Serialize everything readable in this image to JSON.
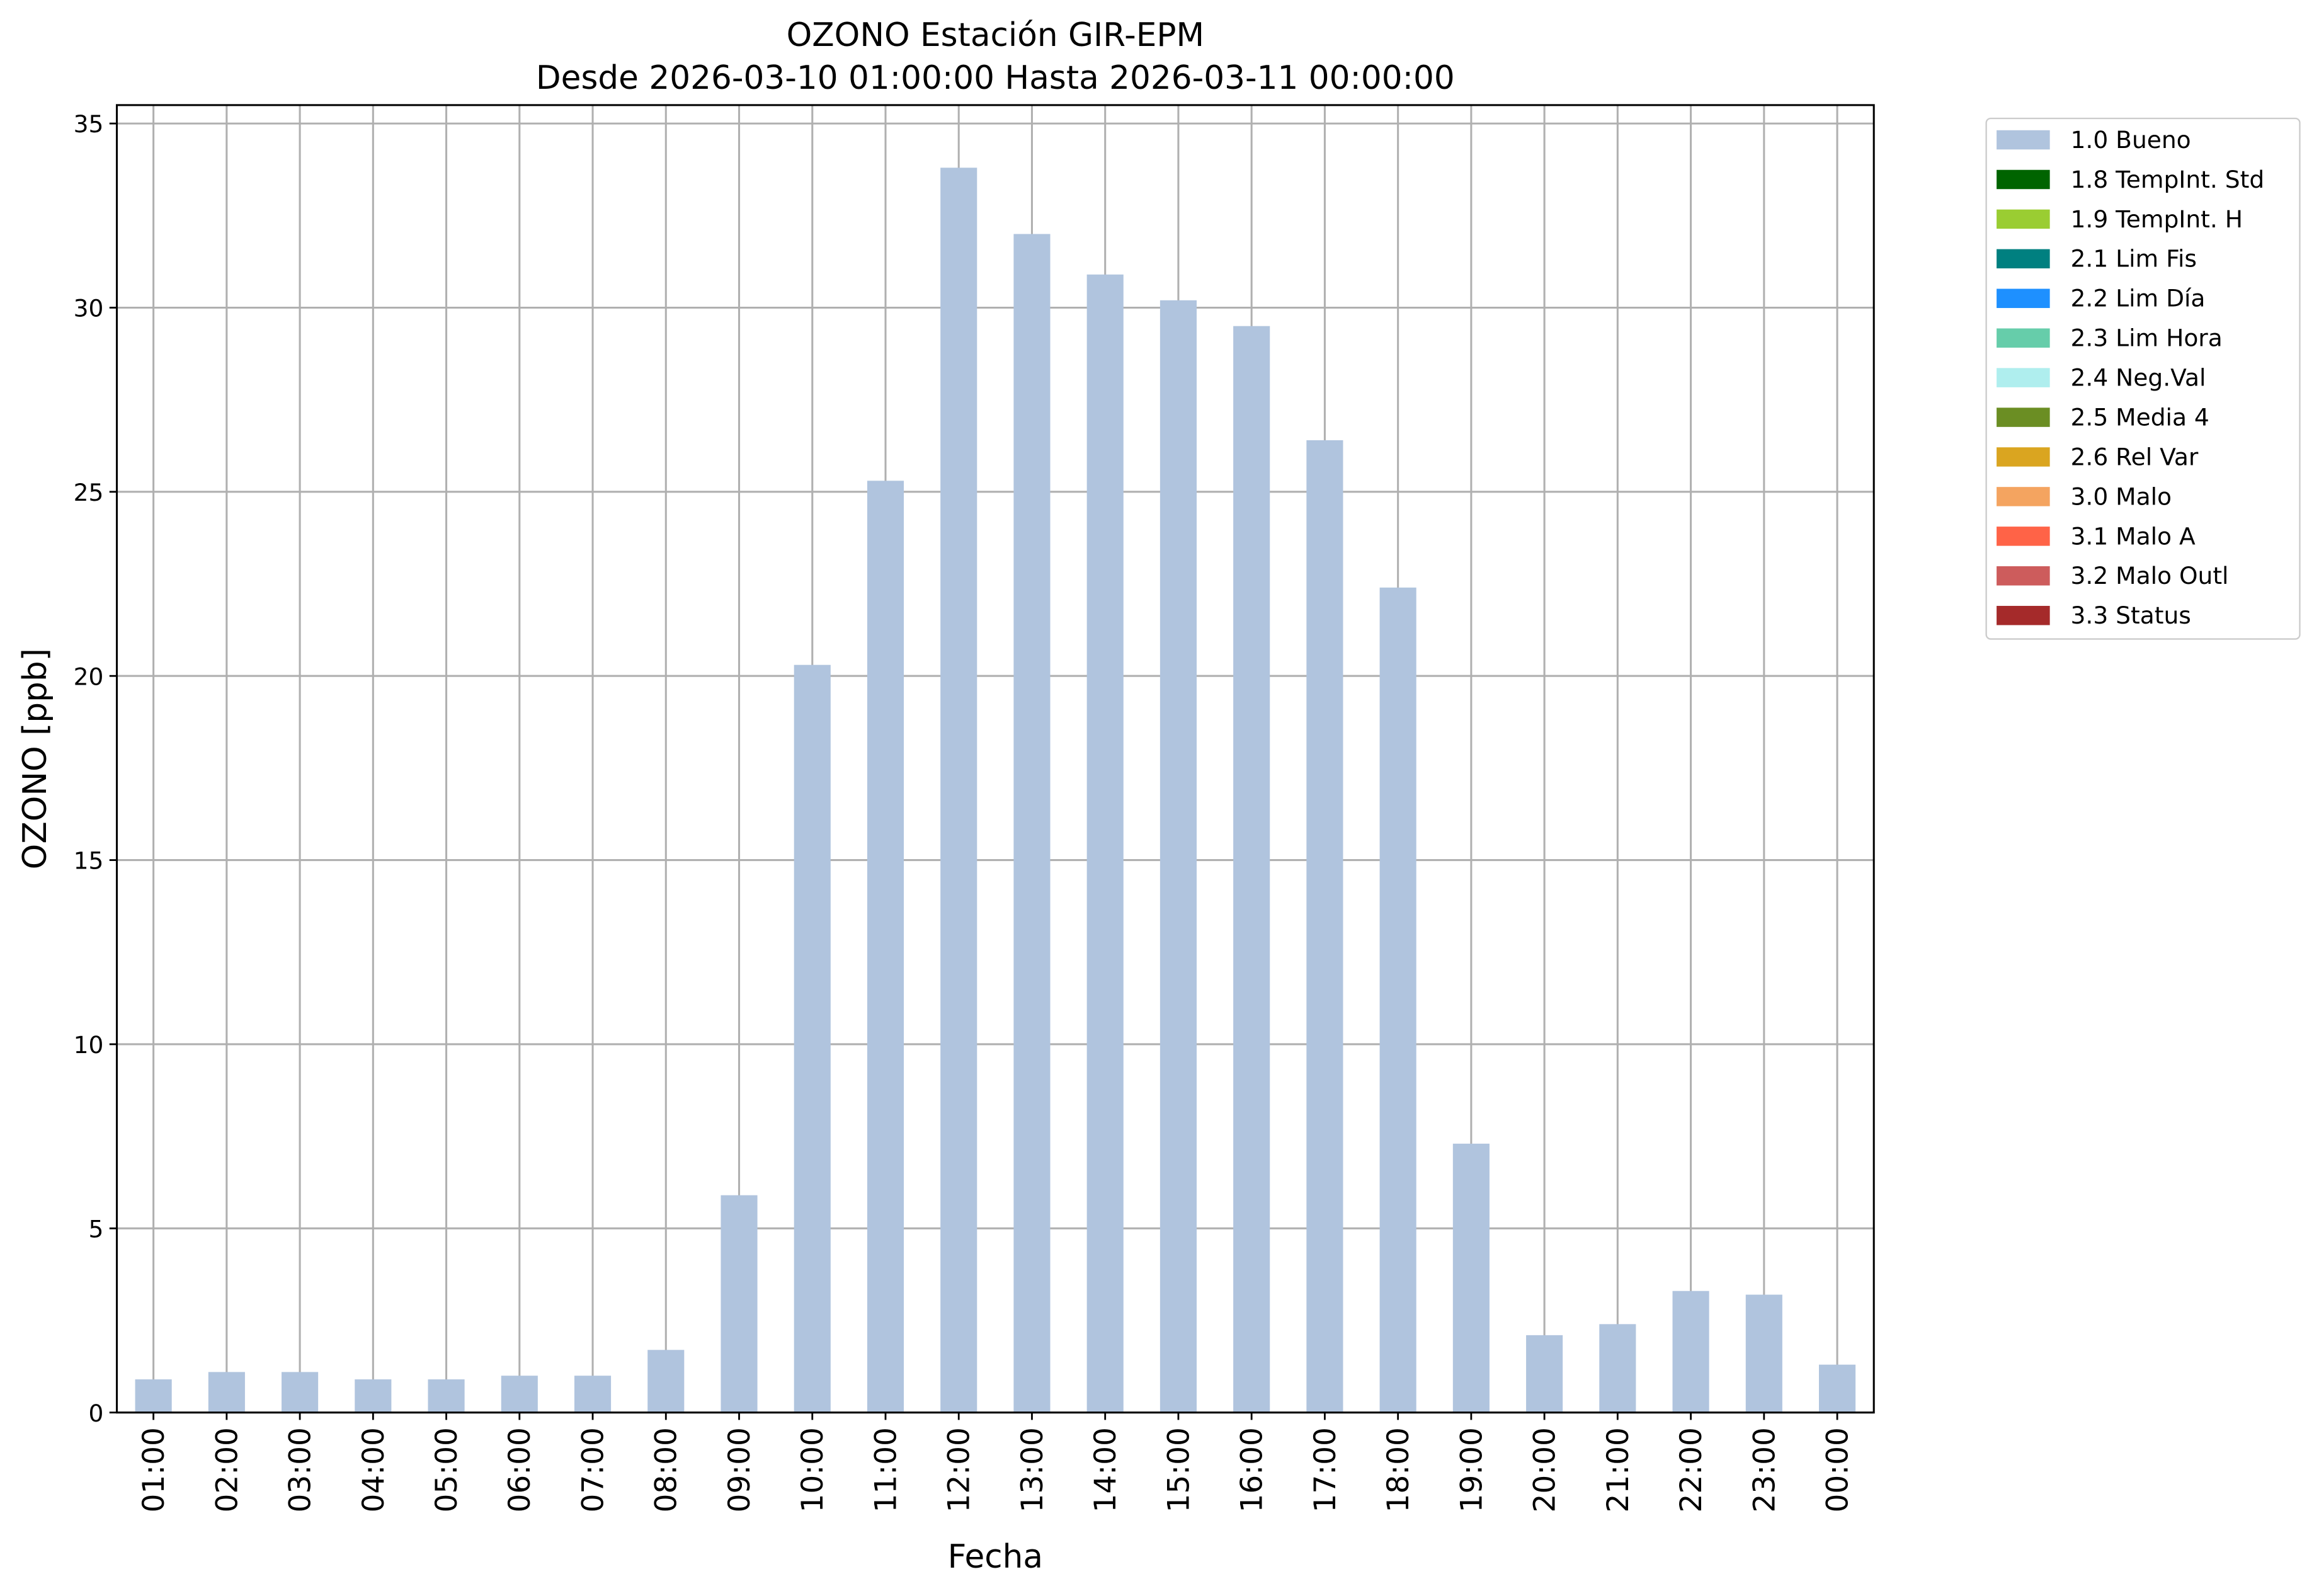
{
  "chart_data": {
    "type": "stacked-bar",
    "title": "OZONO Estación GIR-EPM",
    "subtitle": "Desde 2026-03-10 01:00:00 Hasta 2026-03-11 00:00:00",
    "x_label": "Fecha",
    "y_label": "OZONO [ppb]",
    "categories": [
      "01:00",
      "02:00",
      "03:00",
      "04:00",
      "05:00",
      "06:00",
      "07:00",
      "08:00",
      "09:00",
      "10:00",
      "11:00",
      "12:00",
      "13:00",
      "14:00",
      "15:00",
      "16:00",
      "17:00",
      "18:00",
      "19:00",
      "20:00",
      "21:00",
      "22:00",
      "23:00",
      "00:00"
    ],
    "series": [
      {
        "name": "1.0 Bueno",
        "color": "#b0c4de",
        "values": [
          0.9,
          1.1,
          1.1,
          0.9,
          0.9,
          1.0,
          1.0,
          1.7,
          5.9,
          20.3,
          25.3,
          33.8,
          32.0,
          30.9,
          30.2,
          29.5,
          26.4,
          22.4,
          7.3,
          2.1,
          2.4,
          3.3,
          3.2,
          1.3
        ]
      },
      {
        "name": "1.8 TempInt. Std",
        "color": "#006400",
        "values": [
          0,
          0,
          0,
          0,
          0,
          0,
          0,
          0,
          0,
          0,
          0,
          0,
          0,
          0,
          0,
          0,
          0,
          0,
          0,
          0,
          0,
          0,
          0,
          0
        ]
      },
      {
        "name": "1.9 TempInt. H",
        "color": "#9acd32",
        "values": [
          0,
          0,
          0,
          0,
          0,
          0,
          0,
          0,
          0,
          0,
          0,
          0,
          0,
          0,
          0,
          0,
          0,
          0,
          0,
          0,
          0,
          0,
          0,
          0
        ]
      },
      {
        "name": "2.1 Lim Fis",
        "color": "#008080",
        "values": [
          0,
          0,
          0,
          0,
          0,
          0,
          0,
          0,
          0,
          0,
          0,
          0,
          0,
          0,
          0,
          0,
          0,
          0,
          0,
          0,
          0,
          0,
          0,
          0
        ]
      },
      {
        "name": "2.2 Lim Día",
        "color": "#1e90ff",
        "values": [
          0,
          0,
          0,
          0,
          0,
          0,
          0,
          0,
          0,
          0,
          0,
          0,
          0,
          0,
          0,
          0,
          0,
          0,
          0,
          0,
          0,
          0,
          0,
          0
        ]
      },
      {
        "name": "2.3 Lim Hora",
        "color": "#66cdaa",
        "values": [
          0,
          0,
          0,
          0,
          0,
          0,
          0,
          0,
          0,
          0,
          0,
          0,
          0,
          0,
          0,
          0,
          0,
          0,
          0,
          0,
          0,
          0,
          0,
          0
        ]
      },
      {
        "name": "2.4 Neg.Val",
        "color": "#afeeee",
        "values": [
          0,
          0,
          0,
          0,
          0,
          0,
          0,
          0,
          0,
          0,
          0,
          0,
          0,
          0,
          0,
          0,
          0,
          0,
          0,
          0,
          0,
          0,
          0,
          0
        ]
      },
      {
        "name": "2.5 Media 4",
        "color": "#6b8e23",
        "values": [
          0,
          0,
          0,
          0,
          0,
          0,
          0,
          0,
          0,
          0,
          0,
          0,
          0,
          0,
          0,
          0,
          0,
          0,
          0,
          0,
          0,
          0,
          0,
          0
        ]
      },
      {
        "name": "2.6 Rel Var",
        "color": "#daa520",
        "values": [
          0,
          0,
          0,
          0,
          0,
          0,
          0,
          0,
          0,
          0,
          0,
          0,
          0,
          0,
          0,
          0,
          0,
          0,
          0,
          0,
          0,
          0,
          0,
          0
        ]
      },
      {
        "name": "3.0 Malo",
        "color": "#f4a460",
        "values": [
          0,
          0,
          0,
          0,
          0,
          0,
          0,
          0,
          0,
          0,
          0,
          0,
          0,
          0,
          0,
          0,
          0,
          0,
          0,
          0,
          0,
          0,
          0,
          0
        ]
      },
      {
        "name": "3.1 Malo A",
        "color": "#ff6347",
        "values": [
          0,
          0,
          0,
          0,
          0,
          0,
          0,
          0,
          0,
          0,
          0,
          0,
          0,
          0,
          0,
          0,
          0,
          0,
          0,
          0,
          0,
          0,
          0,
          0
        ]
      },
      {
        "name": "3.2 Malo Outl",
        "color": "#cd5c5c",
        "values": [
          0,
          0,
          0,
          0,
          0,
          0,
          0,
          0,
          0,
          0,
          0,
          0,
          0,
          0,
          0,
          0,
          0,
          0,
          0,
          0,
          0,
          0,
          0,
          0
        ]
      },
      {
        "name": "3.3 Status",
        "color": "#a52a2a",
        "values": [
          0,
          0,
          0,
          0,
          0,
          0,
          0,
          0,
          0,
          0,
          0,
          0,
          0,
          0,
          0,
          0,
          0,
          0,
          0,
          0,
          0,
          0,
          0,
          0
        ]
      }
    ],
    "ylim": [
      0,
      35.5
    ],
    "yticks": [
      0,
      5,
      10,
      15,
      20,
      25,
      30,
      35
    ],
    "grid": true,
    "legend": "outside-right"
  }
}
